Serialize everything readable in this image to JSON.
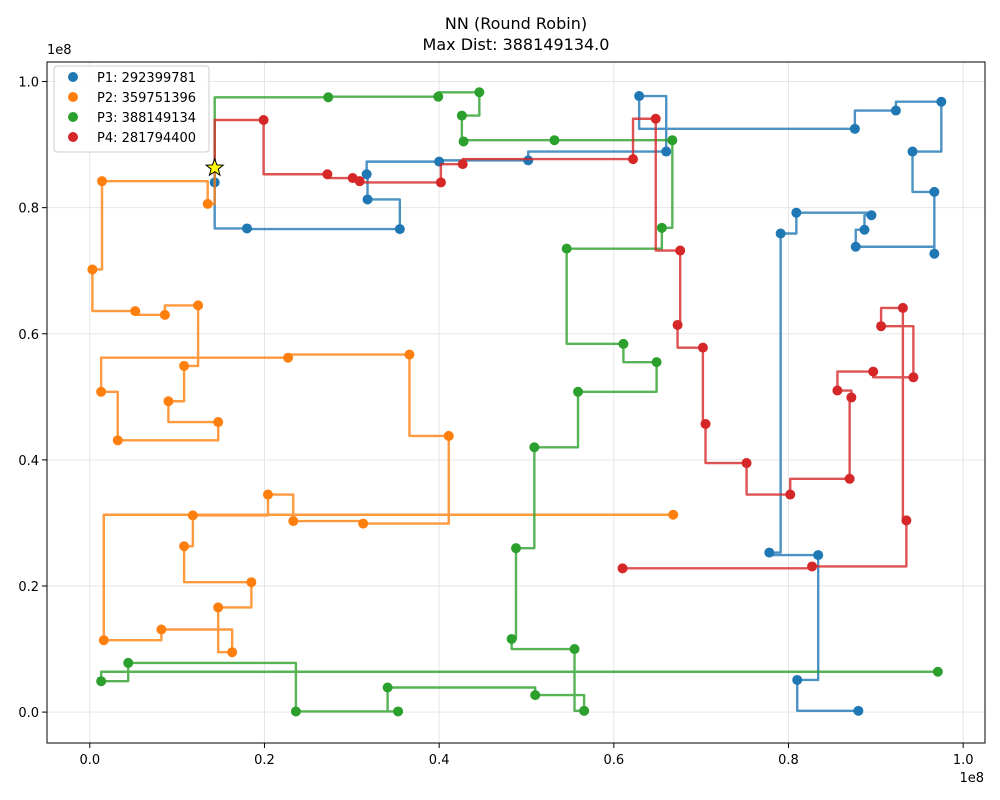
{
  "chart_data": {
    "type": "line",
    "title": "NN (Round Robin)",
    "subtitle": "Max Dist: 388149134.0",
    "x_offset_label": "1e8",
    "y_offset_label": "1e8",
    "xlim": [
      -0.049,
      1.025
    ],
    "ylim": [
      -0.049,
      1.031
    ],
    "x_ticks": [
      0.0,
      0.2,
      0.4,
      0.6,
      0.8,
      1.0
    ],
    "x_tick_labels": [
      "0.0",
      "0.2",
      "0.4",
      "0.6",
      "0.8",
      "1.0"
    ],
    "y_ticks": [
      0.0,
      0.2,
      0.4,
      0.6,
      0.8,
      1.0
    ],
    "y_tick_labels": [
      "0.0",
      "0.2",
      "0.4",
      "0.6",
      "0.8",
      "1.0"
    ],
    "grid": true,
    "legend_position": "top-left",
    "connection_style": "manhattan-step",
    "depot": [
      0.143,
      0.863
    ],
    "series": [
      {
        "name": "P1: 292399781",
        "color": "#1f77b4",
        "points": [
          [
            0.143,
            0.863
          ],
          [
            0.143,
            0.84
          ],
          [
            0.18,
            0.767
          ],
          [
            0.355,
            0.766
          ],
          [
            0.318,
            0.813
          ],
          [
            0.317,
            0.853
          ],
          [
            0.4,
            0.873
          ],
          [
            0.502,
            0.875
          ],
          [
            0.66,
            0.889
          ],
          [
            0.629,
            0.977
          ],
          [
            0.876,
            0.925
          ],
          [
            0.923,
            0.954
          ],
          [
            0.975,
            0.968
          ],
          [
            0.942,
            0.889
          ],
          [
            0.967,
            0.825
          ],
          [
            0.967,
            0.727
          ],
          [
            0.877,
            0.738
          ],
          [
            0.887,
            0.765
          ],
          [
            0.895,
            0.788
          ],
          [
            0.809,
            0.792
          ],
          [
            0.791,
            0.759
          ],
          [
            0.778,
            0.253
          ],
          [
            0.834,
            0.249
          ],
          [
            0.81,
            0.051
          ],
          [
            0.88,
            0.002
          ]
        ]
      },
      {
        "name": "P2: 359751396",
        "color": "#ff7f0e",
        "points": [
          [
            0.143,
            0.863
          ],
          [
            0.135,
            0.806
          ],
          [
            0.014,
            0.842
          ],
          [
            0.003,
            0.702
          ],
          [
            0.052,
            0.636
          ],
          [
            0.086,
            0.63
          ],
          [
            0.124,
            0.645
          ],
          [
            0.108,
            0.549
          ],
          [
            0.09,
            0.493
          ],
          [
            0.147,
            0.46
          ],
          [
            0.032,
            0.431
          ],
          [
            0.013,
            0.508
          ],
          [
            0.227,
            0.562
          ],
          [
            0.366,
            0.567
          ],
          [
            0.411,
            0.438
          ],
          [
            0.313,
            0.299
          ],
          [
            0.233,
            0.303
          ],
          [
            0.204,
            0.345
          ],
          [
            0.118,
            0.312
          ],
          [
            0.108,
            0.263
          ],
          [
            0.185,
            0.206
          ],
          [
            0.147,
            0.166
          ],
          [
            0.163,
            0.095
          ],
          [
            0.082,
            0.131
          ],
          [
            0.016,
            0.114
          ],
          [
            0.668,
            0.313
          ]
        ]
      },
      {
        "name": "P3: 388149134",
        "color": "#2ca02c",
        "points": [
          [
            0.143,
            0.863
          ],
          [
            0.273,
            0.975
          ],
          [
            0.399,
            0.976
          ],
          [
            0.446,
            0.983
          ],
          [
            0.426,
            0.946
          ],
          [
            0.428,
            0.905
          ],
          [
            0.532,
            0.907
          ],
          [
            0.667,
            0.907
          ],
          [
            0.655,
            0.768
          ],
          [
            0.546,
            0.735
          ],
          [
            0.611,
            0.584
          ],
          [
            0.649,
            0.555
          ],
          [
            0.559,
            0.508
          ],
          [
            0.509,
            0.42
          ],
          [
            0.488,
            0.26
          ],
          [
            0.483,
            0.116
          ],
          [
            0.555,
            0.1
          ],
          [
            0.566,
            0.002
          ],
          [
            0.51,
            0.027
          ],
          [
            0.341,
            0.039
          ],
          [
            0.353,
            0.001
          ],
          [
            0.236,
            0.001
          ],
          [
            0.044,
            0.078
          ],
          [
            0.013,
            0.049
          ],
          [
            0.971,
            0.064
          ]
        ]
      },
      {
        "name": "P4: 281794400",
        "color": "#d62728",
        "points": [
          [
            0.143,
            0.863
          ],
          [
            0.199,
            0.939
          ],
          [
            0.272,
            0.853
          ],
          [
            0.301,
            0.847
          ],
          [
            0.309,
            0.842
          ],
          [
            0.402,
            0.84
          ],
          [
            0.427,
            0.869
          ],
          [
            0.622,
            0.877
          ],
          [
            0.648,
            0.941
          ],
          [
            0.676,
            0.732
          ],
          [
            0.673,
            0.614
          ],
          [
            0.702,
            0.578
          ],
          [
            0.705,
            0.457
          ],
          [
            0.752,
            0.395
          ],
          [
            0.802,
            0.345
          ],
          [
            0.87,
            0.37
          ],
          [
            0.872,
            0.499
          ],
          [
            0.856,
            0.51
          ],
          [
            0.897,
            0.54
          ],
          [
            0.943,
            0.531
          ],
          [
            0.906,
            0.612
          ],
          [
            0.931,
            0.641
          ],
          [
            0.935,
            0.304
          ],
          [
            0.827,
            0.231
          ],
          [
            0.61,
            0.228
          ]
        ]
      }
    ]
  }
}
